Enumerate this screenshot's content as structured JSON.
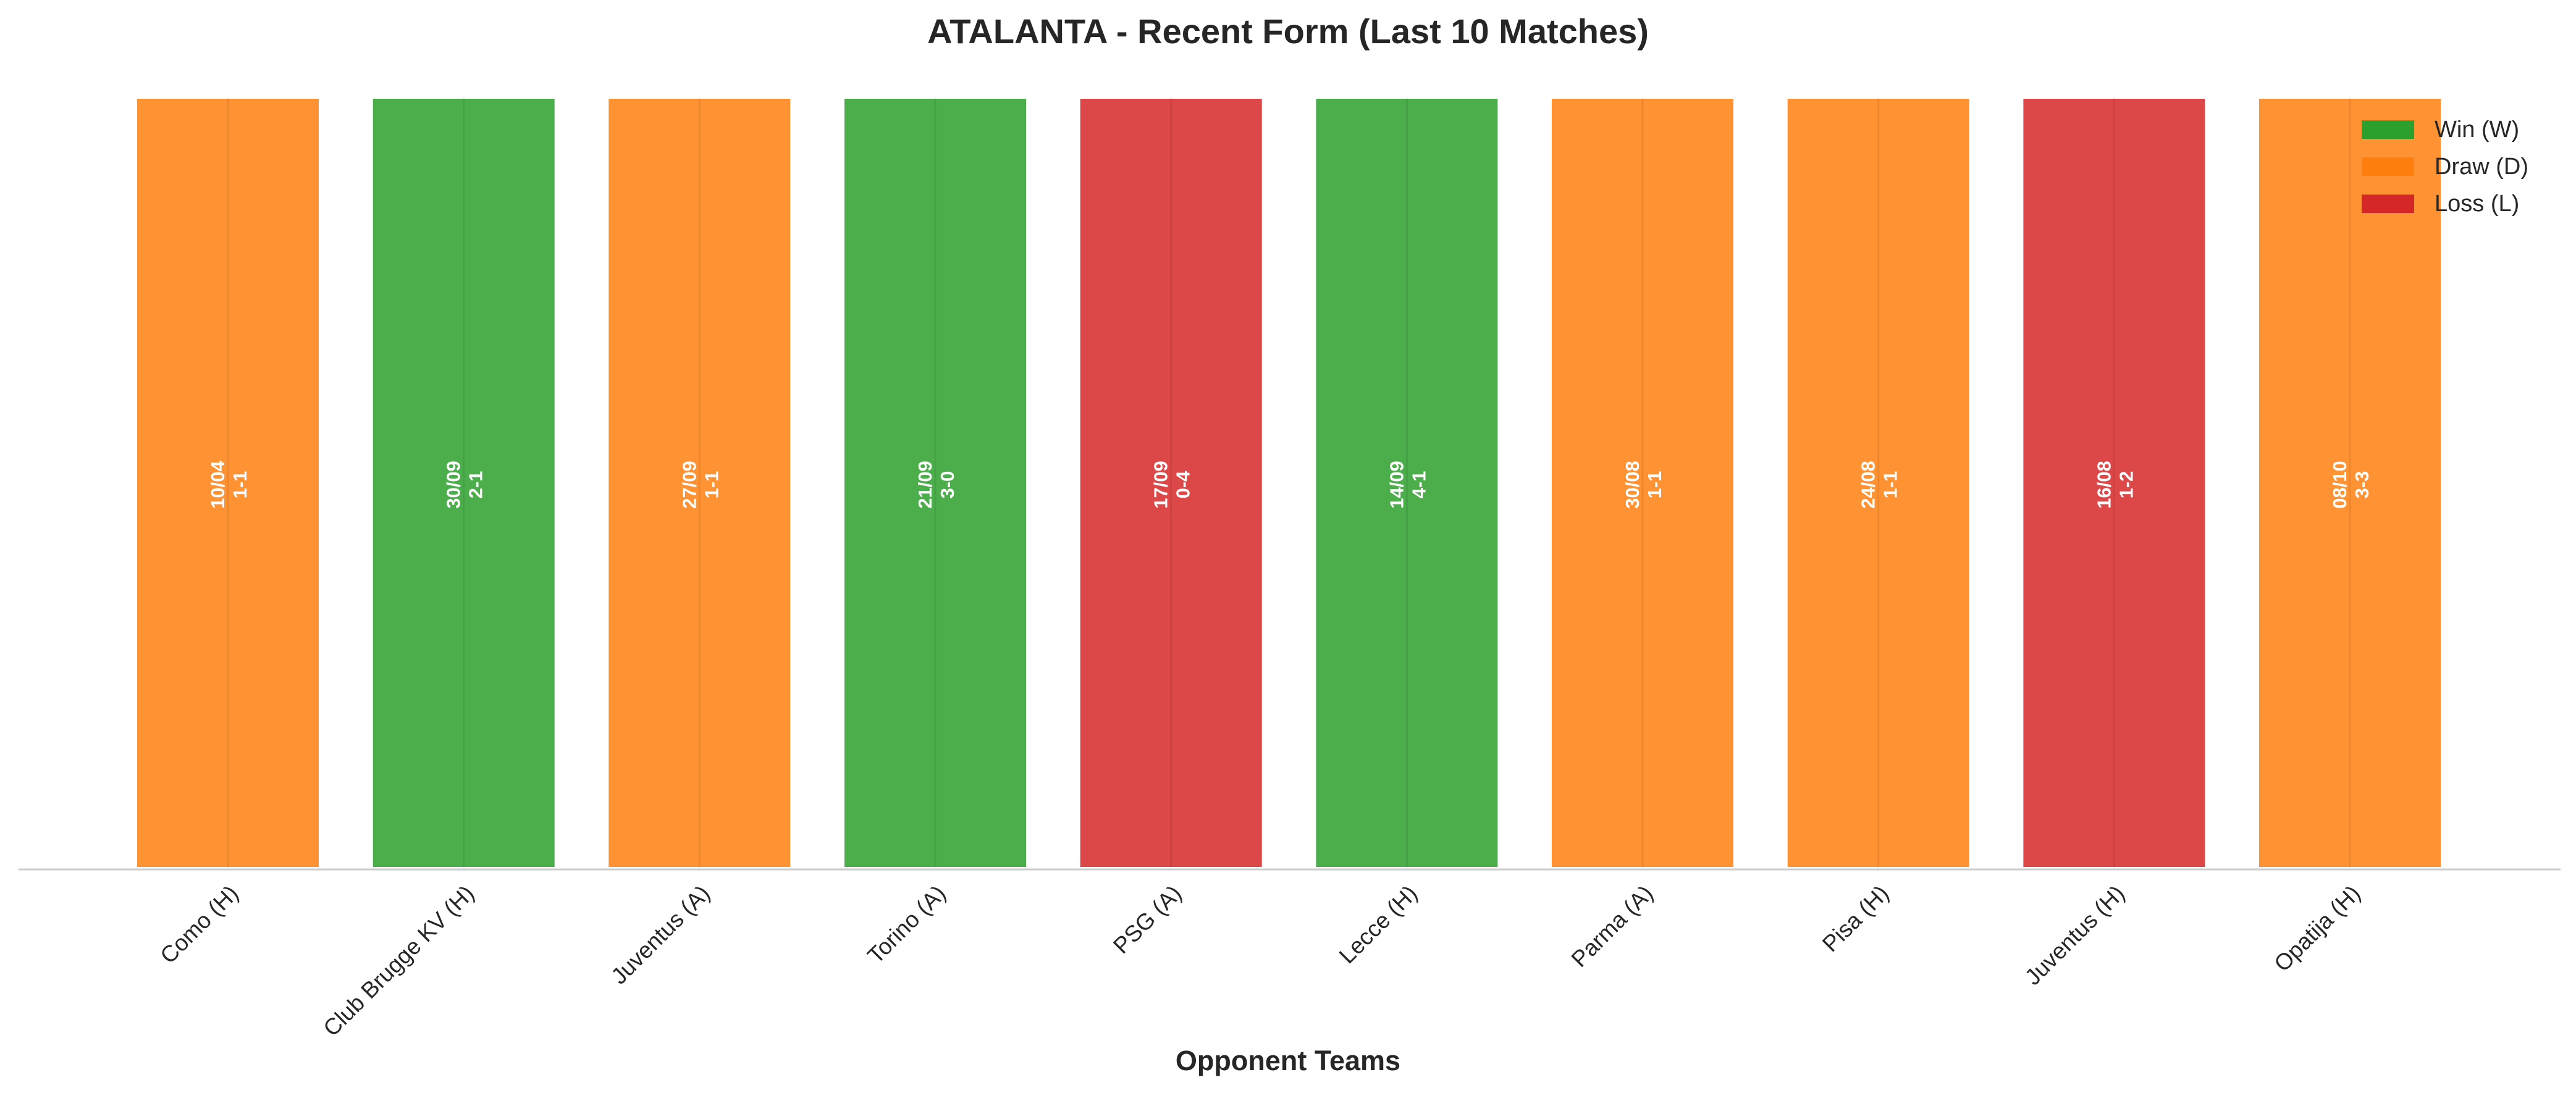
{
  "chart_data": {
    "type": "bar",
    "title": "ATALANTA - Recent Form (Last 10 Matches)",
    "xlabel": "Opponent Teams",
    "ylabel": "",
    "categories": [
      "Como (H)",
      "Club Brugge KV (H)",
      "Juventus (A)",
      "Torino (A)",
      "PSG (A)",
      "Lecce (H)",
      "Parma (A)",
      "Pisa (H)",
      "Juventus (H)",
      "Opatija (H)"
    ],
    "values": [
      1,
      1,
      1,
      1,
      1,
      1,
      1,
      1,
      1,
      1
    ],
    "results": [
      "D",
      "W",
      "D",
      "W",
      "L",
      "W",
      "D",
      "D",
      "L",
      "D"
    ],
    "dates": [
      "10/04",
      "30/09",
      "27/09",
      "21/09",
      "17/09",
      "14/09",
      "30/08",
      "24/08",
      "16/08",
      "08/10"
    ],
    "scores": [
      "1-1",
      "2-1",
      "1-1",
      "3-0",
      "0-4",
      "4-1",
      "1-1",
      "1-1",
      "1-2",
      "3-3"
    ],
    "ylim": [
      0,
      1
    ],
    "grid": false,
    "legend": {
      "placement": "top-right",
      "entries": [
        {
          "key": "W",
          "label": "Win (W)",
          "color": "#2ca02c"
        },
        {
          "key": "D",
          "label": "Draw (D)",
          "color": "#ff7f0e"
        },
        {
          "key": "L",
          "label": "Loss (L)",
          "color": "#d62728"
        }
      ]
    }
  }
}
